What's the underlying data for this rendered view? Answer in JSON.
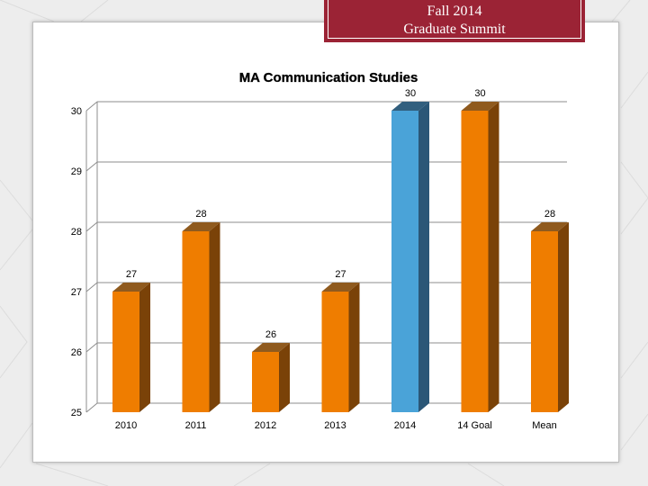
{
  "header": {
    "line1": "Fall 2014",
    "line2": "Graduate Summit"
  },
  "colors": {
    "banner": "#9b2335",
    "orange_front": "#ef7d00",
    "orange_side": "#7a4208",
    "orange_top": "#8f5a1e",
    "blue_front": "#4aa3d8",
    "blue_side": "#2b5777",
    "blue_top": "#325f7e"
  },
  "chart_data": {
    "type": "bar",
    "title": "MA Communication Studies",
    "categories": [
      "2010",
      "2011",
      "2012",
      "2013",
      "2014",
      "14 Goal",
      "Mean"
    ],
    "values": [
      27,
      28,
      26,
      27,
      30,
      30,
      28
    ],
    "data_labels": [
      "27",
      "28",
      "26",
      "27",
      "30",
      "30",
      "28"
    ],
    "bar_colors": [
      "orange",
      "orange",
      "orange",
      "orange",
      "blue",
      "orange",
      "orange"
    ],
    "ylim": [
      25,
      30
    ],
    "yticks": [
      "25",
      "26",
      "27",
      "28",
      "29",
      "30"
    ],
    "xlabel": "",
    "ylabel": "",
    "grid": true,
    "style": "3d"
  }
}
